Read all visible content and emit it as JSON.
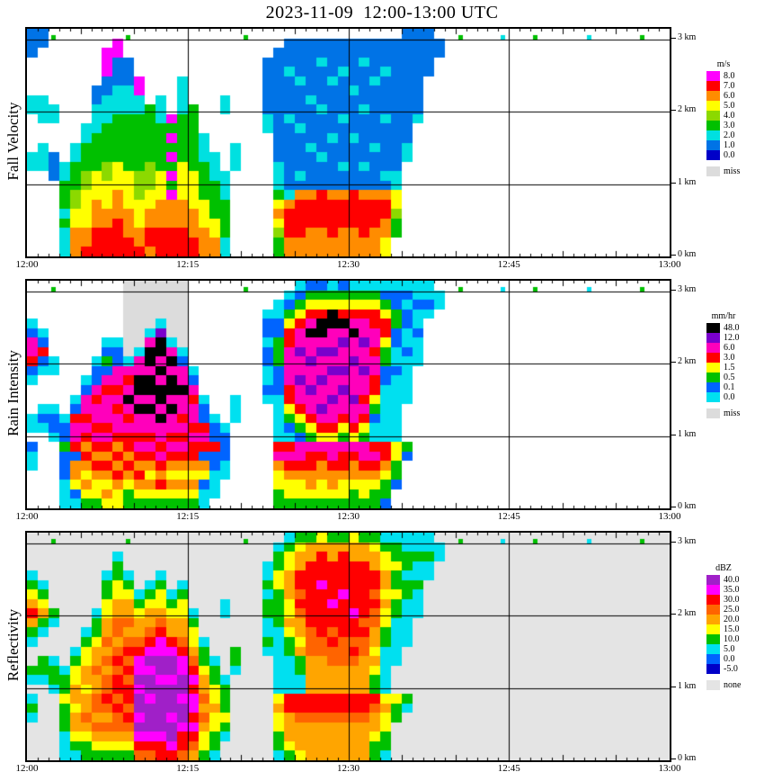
{
  "chart_data": {
    "type": "heatmap",
    "title": "2023-11-09  12:00-13:00 UTC",
    "x_axis": {
      "ticks": [
        {
          "label": "12:00",
          "minute": 0
        },
        {
          "label": "12:15",
          "minute": 15
        },
        {
          "label": "12:30",
          "minute": 30
        },
        {
          "label": "12:45",
          "minute": 45
        },
        {
          "label": "13:00",
          "minute": 60
        }
      ]
    },
    "y_axis": {
      "range_km": [
        0,
        3.15
      ],
      "ticks": [
        {
          "label": "3 km",
          "km": 3
        },
        {
          "label": "2 km",
          "km": 2
        },
        {
          "label": "1 km",
          "km": 1
        },
        {
          "label": "0 km",
          "km": 0
        }
      ]
    },
    "grid": {
      "columns": 60,
      "rows": 24,
      "note": "each column = 1 minute starting 12:00 UTC; each string runs top (3.15 km) to bottom (0 km); '.' = no echo / background"
    },
    "panels": [
      {
        "id": "fall-velocity",
        "ylabel": "Fall Velocity",
        "unit": "m/s",
        "background": "#FFFFFF",
        "legend": {
          "title": "m/s",
          "entries": [
            {
              "label": "8.0",
              "color": "#FF00FF"
            },
            {
              "label": "7.0",
              "color": "#FF0000"
            },
            {
              "label": "6.0",
              "color": "#FF8C00"
            },
            {
              "label": "5.0",
              "color": "#FFFF00"
            },
            {
              "label": "4.0",
              "color": "#8CD900"
            },
            {
              "label": "3.0",
              "color": "#00C000"
            },
            {
              "label": "2.0",
              "color": "#00E0E0"
            },
            {
              "label": "1.0",
              "color": "#0073E6"
            },
            {
              "label": "0.0",
              "color": "#0000C8"
            },
            {
              "label": "miss",
              "color": "#DCDCDC",
              "gap": true
            }
          ]
        },
        "palette": {
          "0": "#0000C8",
          "1": "#0073E6",
          "2": "#00E0E0",
          "3": "#00C000",
          "4": "#8CD900",
          "5": "#FFFF00",
          "6": "#FF8C00",
          "7": "#FF0000",
          "8": "#FF00FF",
          "m": "#DCDCDC"
        },
        "columns": {
          "0": "111....22....22.........",
          "1": "11.....222..222.........",
          "2": "3.......22...111........",
          "3": "..............2233323222",
          "4": "............223334455666",
          "5": "..........22333445555667",
          "6": "......112223333555666777",
          "7": "..8881122233334455566777",
          "8": ".88111222333335556667777",
          "9": "3..111222333333555566677",
          "10": ".....8822333333444555667",
          "11": "........3333334445566776",
          "12": ".......22233333555666777",
          "13": ".........838383838666777",
          "14": ".....2222333335555666777",
          "15": "........3333333555566677",
          "16": "...........2223333555666",
          "17": ".............22233335566",
          "18": ".......22......222333322",
          "19": "............222.........",
          "20": "3",
          "22": "...11111122.............",
          "23": "..1111111111112223565433",
          "24": ".11121111211111112677766",
          "25": ".11112111121111216777766",
          "26": ".11111121111211116777666",
          "27": ".11211112111121117777666",
          "28": ".11112111112111116777766",
          "29": ".11121111211112116777666",
          "30": ".11111211112111117777666",
          "31": ".11211112111112116777766",
          "32": ".11112111111211116777666",
          "33": ".11121111211111216776655",
          "34": ".111111111111112255433..",
          "35": "11111111111122..........",
          "36": "1111111112..............",
          "37": "11111...................",
          "38": ".11.....................",
          "40": "3",
          "44": "2",
          "47": "3",
          "52": "2",
          "57": "3"
        }
      },
      {
        "id": "rain-intensity",
        "ylabel": "Rain Intensity",
        "unit": "mm/hr",
        "background": "#FFFFFF",
        "legend": {
          "title": "mm/hr",
          "entries": [
            {
              "label": "48.0",
              "color": "#000000"
            },
            {
              "label": "12.0",
              "color": "#7A00CC"
            },
            {
              "label": "6.0",
              "color": "#FF00BB"
            },
            {
              "label": "3.0",
              "color": "#FF0000"
            },
            {
              "label": "1.5",
              "color": "#FFFF00"
            },
            {
              "label": "0.5",
              "color": "#00C000"
            },
            {
              "label": "0.1",
              "color": "#0064FF"
            },
            {
              "label": "0.0",
              "color": "#00E0F0"
            },
            {
              "label": "miss",
              "color": "#DCDCDC",
              "gap": true
            }
          ]
        },
        "palette": {
          "K": "#000000",
          "P": "#7A00CC",
          "M": "#FF00BB",
          "R": "#FF0000",
          "O": "#FF9100",
          "Y": "#FFFF00",
          "G": "#00C000",
          "B": "#0064FF",
          "C": "#00E0F0",
          "m": "#DCDCDC"
        },
        "columns": {
          "0": "....CBMMRBC...CC.BCC....",
          "1": ".....CBRBC...CBC........",
          "2": "G.......CC...CBBC.......",
          "3": "..............CBBGBBBCCC",
          "4": "............CBRMMRBOOYBC",
          "5": "..........CBMMRMROROYOYG",
          "6": "........CBBMRMMRMROROYYG",
          "7": "......CBGBMRMMMRMROROYOY",
          "8": "......CBBMMRMRMMROROROYY",
          "9": "mmmmmmmmCMRMKMRMRROROYGG",
          "10": "mmmmmmmCMMKKMKMMRMROROYG",
          "11": "mmmmmCMKKMKKMKMMRMROYOYG",
          "12": "mmmmCPKKMKMKKMKMMRMRORYG",
          "13": "mmmmmmCMKMKKMKMMRMROYOYG",
          "14": "mmmmmmmCBMMKMMRMRMROYOYG",
          "15": ".........CBMRMMRMRROYOYG",
          "16": "............CBBRMRBOYBCC",
          "17": "..............CBBRBBCCC.",
          "18": "...............CBBBCC...",
          "19": "............CCC.........",
          "20": "G",
          "22": "...CBBCBBCCBC...........",
          "23": "..CCBBGGGBBBCCCCCRMOYYGG",
          "24": ".CBGYRRMMMMRRYGBCRMROYYG",
          "25": "CBGYRMMPMMPMMRYGBMMROYYG",
          "26": "BGYRMKMMPMMPMMRYGMRROOYG",
          "27": "BGYRKKMPMMPMMPMRYMROOYYG",
          "28": "CGYKKMMPMPMMPMMRYMMROOYG",
          "29": "BGYRKMPMMPMPMMRYGMRROYYG",
          "30": "CGYRMKMMPMMMPMMRYMROOYGG",
          "31": "CGYRMMPMMPMMRMRYGMMROYYG",
          "32": "CGYRRMMRMMRRYGBCCRMROYGG",
          "33": "CBGYRRYGGBBCCCCCCRROYGGB",
          "34": "CBBGGBBCCBCCCCCCCYYGGB..",
          "35": "CBCBBCCBCCCCC....GB.....",
          "36": "CCBCCBCCC...............",
          "37": "CCBC....................",
          "38": ".CC.....................",
          "40": "G",
          "44": "C",
          "47": "G",
          "52": "C",
          "57": "G"
        }
      },
      {
        "id": "reflectivity",
        "ylabel": "Reflectivity",
        "unit": "dBZ",
        "background": "#E4E4E4",
        "legend": {
          "title": "dBZ",
          "entries": [
            {
              "label": "40.0",
              "color": "#A020C8"
            },
            {
              "label": "35.0",
              "color": "#FF00FF"
            },
            {
              "label": "30.0",
              "color": "#FF0000"
            },
            {
              "label": "25.0",
              "color": "#FF6400"
            },
            {
              "label": "20.0",
              "color": "#FFA500"
            },
            {
              "label": "15.0",
              "color": "#FFFF00"
            },
            {
              "label": "10.0",
              "color": "#00C000"
            },
            {
              "label": "5.0",
              "color": "#00E0F0"
            },
            {
              "label": "0.0",
              "color": "#0064FF"
            },
            {
              "label": "-5.0",
              "color": "#0000C8"
            },
            {
              "label": "none",
              "color": "#E4E4E4",
              "gap": true
            }
          ]
        },
        "palette": {
          "P": "#A020C8",
          "M": "#FF00FF",
          "R": "#FF0000",
          "D": "#FF6400",
          "O": "#FFA500",
          "Y": "#FFFF00",
          "G": "#00C000",
          "C": "#00E0F0",
          "B": "#0064FF",
          "N": "#0000C8"
        },
        "columns": {
          "0": "....CGYOROGC..GC.CGC....",
          "1": ".....CGYOGC..GGC........",
          "2": "G.......GC...CGGC.......",
          "3": "..............CGGYGGGCCC",
          "4": "............CGYYOOYOOYGC",
          "5": "..........CGYYOOYOODOYGG",
          "6": "........CGGYOODOODDODOYG",
          "7": "....CGGYYOODODODDRDODOYG",
          "8": "..CGGYYOODDODRDRRDRDDOYG",
          "9": "G...CGYOODODRDRDRRDRDOYG",
          "10": "......CGYOODRMMPMPPMPMRD",
          "11": ".....CGYOODRMPMPPMPPPMRD",
          "12": "....CGYYODRMMPPMPPPPPMRR",
          "13": "......CGYOORMPPMPPPMPPMR",
          "14": ".....CGYYOODRMMPPMPPMRRD",
          "15": "........CGYYODRMRMMRMRDO",
          "16": "...........CGGYOODODOYYG",
          "17": ".............CGGYYOYYGGC",
          "18": ".......CC......CGGGYGC..",
          "19": "............GGC.........",
          "20": "G",
          "22": "...CCGCGGCCGC...........",
          "23": ".CGGYYGGGGCCCCCCCYOYYGGC",
          "24": "CGYYOOOYYOYGGCCCCRROOOYG",
          "25": "GYOORRDRDOOYOGGCCRRDOOOY",
          "26": "GOORRRRRRRDDDOOOORRDOOOO",
          "27": "YORRRMRRRRRDDOOOORRDOOOO",
          "28": "GOORRRRMRRDRDDOOORRDOOOO",
          "29": "GORRRRMRRRRDDDOOORRDOOOO",
          "30": "YOORRRRRMRRDRDOOORRDOOOO",
          "31": "GOORRRRRRDRDDOOOORRDOOOO",
          "32": "GYOORRDRDDOOYOYGGRDOOYGG",
          "33": "CGYYOOYOYYGGCCCCCYOYYGGC",
          "34": "CGGYGGYGGCCCCC...YGG....",
          "35": "CCGGCGGCCCCC.....GC.....",
          "36": "CCGCCGCCC...............",
          "37": "CCGCC...................",
          "38": ".CC.....................",
          "40": "G",
          "44": "C",
          "47": "G",
          "52": "C",
          "57": "G"
        }
      }
    ]
  }
}
